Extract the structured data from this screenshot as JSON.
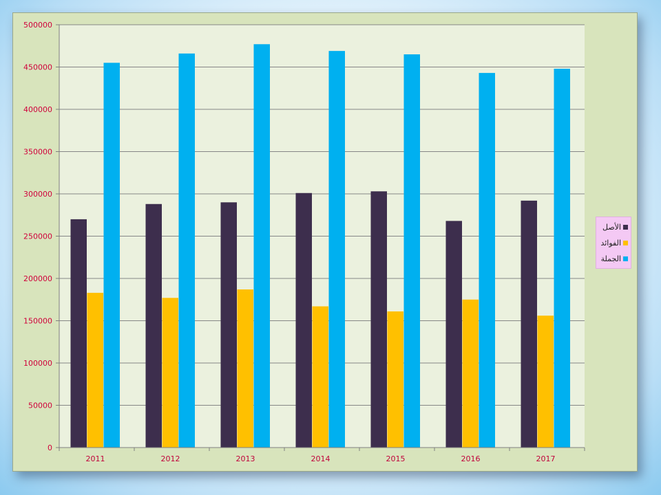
{
  "chart_data": {
    "type": "bar",
    "categories": [
      "2011",
      "2012",
      "2013",
      "2014",
      "2015",
      "2016",
      "2017"
    ],
    "series": [
      {
        "name": "الأصل",
        "color": "#3d2e4d",
        "values": [
          270000,
          288000,
          290000,
          301000,
          303000,
          268000,
          292000
        ]
      },
      {
        "name": "الفوائد",
        "color": "#ffc000",
        "values": [
          183000,
          177000,
          187000,
          167000,
          161000,
          175000,
          156000
        ]
      },
      {
        "name": "الجملة",
        "color": "#00b0f0",
        "values": [
          455000,
          466000,
          477000,
          469000,
          465000,
          443000,
          448000
        ]
      }
    ],
    "yticks": [
      "0",
      "50000",
      "100000",
      "150000",
      "200000",
      "250000",
      "300000",
      "350000",
      "400000",
      "450000",
      "500000"
    ],
    "ylim": [
      0,
      500000
    ],
    "grid": true,
    "legend_position": "right"
  }
}
